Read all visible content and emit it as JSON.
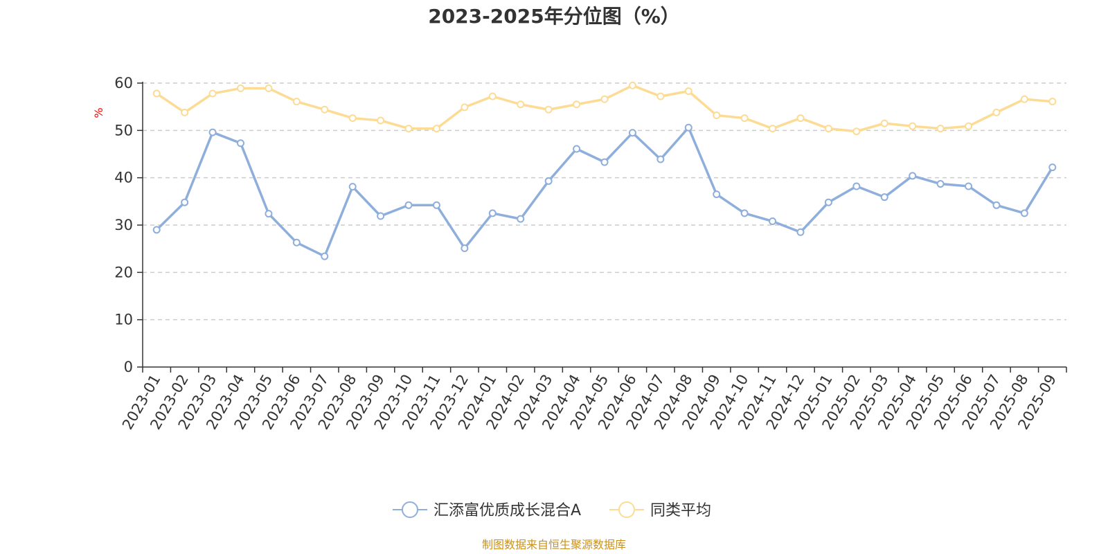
{
  "chart_data": {
    "type": "line",
    "title": "2023-2025年分位图（%）",
    "ylabel": "%",
    "ylim": [
      0,
      60
    ],
    "yticks": [
      0,
      10,
      20,
      30,
      40,
      50,
      60
    ],
    "grid": true,
    "legend_position": "bottom",
    "categories": [
      "2023-01",
      "2023-02",
      "2023-03",
      "2023-04",
      "2023-05",
      "2023-06",
      "2023-07",
      "2023-08",
      "2023-09",
      "2023-10",
      "2023-11",
      "2023-12",
      "2024-01",
      "2024-02",
      "2024-03",
      "2024-04",
      "2024-05",
      "2024-06",
      "2024-07",
      "2024-08",
      "2024-09",
      "2024-10",
      "2024-11",
      "2024-12",
      "2025-01",
      "2025-02",
      "2025-03",
      "2025-04",
      "2025-05",
      "2025-06",
      "2025-07",
      "2025-08",
      "2025-09"
    ],
    "series": [
      {
        "name": "汇添富优质成长混合A",
        "color": "#8eaedb",
        "values": [
          29.0,
          34.8,
          49.6,
          47.3,
          32.4,
          26.3,
          23.4,
          38.1,
          31.9,
          34.2,
          34.2,
          25.1,
          32.5,
          31.3,
          39.3,
          46.1,
          43.3,
          49.5,
          43.9,
          50.6,
          36.5,
          32.5,
          30.8,
          28.5,
          34.8,
          38.2,
          35.9,
          40.4,
          38.7,
          38.2,
          34.2,
          32.5,
          42.2
        ]
      },
      {
        "name": "同类平均",
        "color": "#fcdc95",
        "values": [
          57.8,
          53.8,
          57.8,
          58.9,
          58.9,
          56.1,
          54.4,
          52.6,
          52.1,
          50.4,
          50.4,
          54.9,
          57.2,
          55.5,
          54.4,
          55.5,
          56.6,
          59.5,
          57.2,
          58.3,
          53.2,
          52.6,
          50.4,
          52.6,
          50.4,
          49.8,
          51.5,
          50.9,
          50.4,
          50.9,
          53.8,
          56.6,
          56.1
        ]
      }
    ]
  },
  "source_note": "制图数据来自恒生聚源数据库"
}
